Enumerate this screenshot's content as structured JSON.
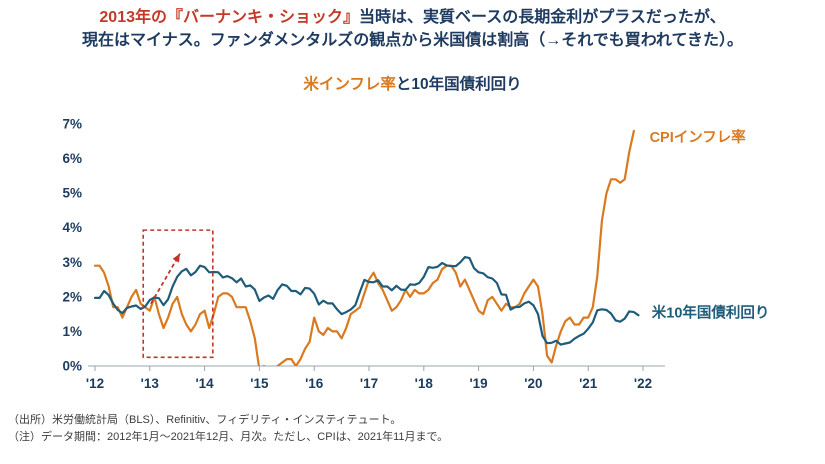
{
  "header": {
    "line1_highlight": "2013年の『バーナンキ・ショック』",
    "line1_rest": "当時は、実質ベースの長期金利がプラスだったが、",
    "line2": "現在はマイナス。ファンダメンタルズの観点から米国債は割高（→それでも買われてきた）。"
  },
  "chart_title": {
    "highlight": "米インフレ率",
    "rest": "と10年国債利回り"
  },
  "footnotes": {
    "source": "（出所）米労働統計局（BLS）、Refinitiv、フィデリティ・インスティテュート。",
    "note": "（注）データ期間：2012年1月～2021年12月、月次。ただし、CPIは、2021年11月まで。"
  },
  "colors": {
    "header_navy": "#1e3a5f",
    "header_red": "#c43a28",
    "cpi_orange": "#d97920",
    "yield_blue": "#1f5c7a",
    "annotation_red": "#c13527",
    "axis_gray": "#9aa5ad"
  },
  "chart_data": {
    "type": "line",
    "title": "米インフレ率と10年国債利回り",
    "x_unit": "month",
    "x_range_years": [
      2012,
      2022
    ],
    "x_tick_labels": [
      "'12",
      "'13",
      "'14",
      "'15",
      "'16",
      "'17",
      "'18",
      "'19",
      "'20",
      "'21",
      "'22"
    ],
    "y_tick_labels": [
      "0%",
      "1%",
      "2%",
      "3%",
      "4%",
      "5%",
      "6%",
      "7%"
    ],
    "ylim": [
      0,
      7
    ],
    "grid": false,
    "legend_position": "line-end-labels",
    "series": [
      {
        "name": "CPIインフレ率",
        "color": "#d97920",
        "start": "2012-01",
        "end": "2021-11",
        "label_anchor": {
          "x": 2022.12,
          "y": 6.62
        },
        "values": [
          2.9,
          2.9,
          2.7,
          2.3,
          1.7,
          1.7,
          1.4,
          1.7,
          2.0,
          2.2,
          1.8,
          1.7,
          1.6,
          2.0,
          1.5,
          1.1,
          1.4,
          1.8,
          2.0,
          1.5,
          1.2,
          1.0,
          1.2,
          1.5,
          1.6,
          1.1,
          1.5,
          2.0,
          2.1,
          2.1,
          2.0,
          1.7,
          1.7,
          1.7,
          1.3,
          0.8,
          -0.1,
          0.0,
          -0.1,
          -0.2,
          0.0,
          0.1,
          0.2,
          0.2,
          0.0,
          0.2,
          0.5,
          0.7,
          1.4,
          1.0,
          0.9,
          1.1,
          1.0,
          1.0,
          0.8,
          1.1,
          1.5,
          1.6,
          1.7,
          2.1,
          2.5,
          2.7,
          2.4,
          2.2,
          1.9,
          1.6,
          1.7,
          1.9,
          2.2,
          2.0,
          2.2,
          2.1,
          2.1,
          2.2,
          2.4,
          2.5,
          2.8,
          2.9,
          2.9,
          2.7,
          2.3,
          2.5,
          2.2,
          1.9,
          1.6,
          1.5,
          1.9,
          2.0,
          1.8,
          1.6,
          1.8,
          1.7,
          1.7,
          1.8,
          2.1,
          2.3,
          2.5,
          2.3,
          1.5,
          0.3,
          0.1,
          0.6,
          1.0,
          1.3,
          1.4,
          1.2,
          1.2,
          1.4,
          1.4,
          1.7,
          2.6,
          4.2,
          5.0,
          5.4,
          5.4,
          5.3,
          5.4,
          6.2,
          6.8
        ]
      },
      {
        "name": "米10年国債利回り",
        "color": "#1f5c7a",
        "start": "2012-01",
        "end": "2021-12",
        "label_anchor": {
          "x": 2022.16,
          "y": 1.55
        },
        "values": [
          1.97,
          1.97,
          2.17,
          2.05,
          1.8,
          1.62,
          1.53,
          1.68,
          1.72,
          1.75,
          1.65,
          1.72,
          1.91,
          1.98,
          1.96,
          1.76,
          1.93,
          2.3,
          2.58,
          2.74,
          2.81,
          2.62,
          2.72,
          2.9,
          2.86,
          2.71,
          2.72,
          2.71,
          2.56,
          2.6,
          2.54,
          2.42,
          2.53,
          2.3,
          2.33,
          2.21,
          1.88,
          1.98,
          2.04,
          1.94,
          2.2,
          2.36,
          2.32,
          2.17,
          2.17,
          2.07,
          2.26,
          2.24,
          2.09,
          1.78,
          1.89,
          1.81,
          1.81,
          1.64,
          1.5,
          1.56,
          1.63,
          1.76,
          2.14,
          2.49,
          2.43,
          2.42,
          2.48,
          2.3,
          2.3,
          2.19,
          2.32,
          2.21,
          2.2,
          2.36,
          2.35,
          2.4,
          2.58,
          2.86,
          2.84,
          2.87,
          2.98,
          2.91,
          2.89,
          2.89,
          3.0,
          3.15,
          3.12,
          2.83,
          2.71,
          2.68,
          2.57,
          2.53,
          2.4,
          2.07,
          2.06,
          1.63,
          1.7,
          1.71,
          1.81,
          1.86,
          1.76,
          1.5,
          0.87,
          0.66,
          0.67,
          0.73,
          0.62,
          0.65,
          0.68,
          0.79,
          0.87,
          0.93,
          1.08,
          1.26,
          1.61,
          1.64,
          1.62,
          1.52,
          1.32,
          1.28,
          1.37,
          1.58,
          1.56,
          1.47
        ]
      }
    ],
    "annotations": {
      "box": {
        "x0": 2012.88,
        "x1": 2014.15,
        "y0": 0.25,
        "y1": 3.93,
        "style": "dashed",
        "color": "#c13527"
      },
      "arrow": {
        "x0": 2013.02,
        "y0": 1.8,
        "x1": 2013.55,
        "y1": 3.25,
        "style": "dashed",
        "color": "#c13527"
      }
    }
  }
}
